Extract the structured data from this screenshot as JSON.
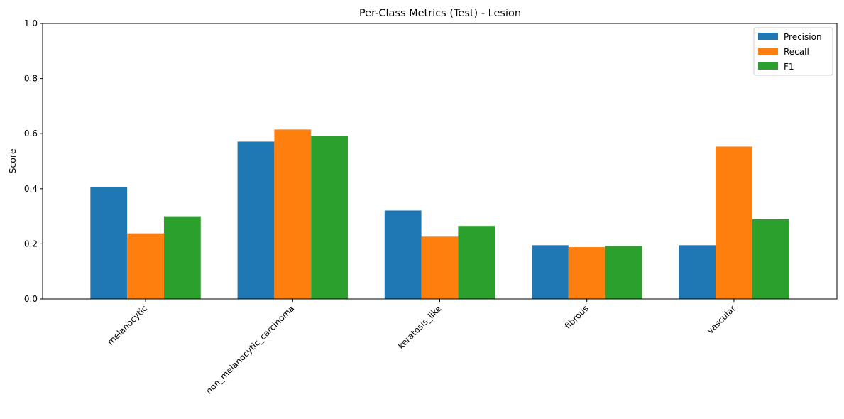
{
  "chart_data": {
    "type": "bar",
    "title": "Per-Class Metrics (Test) - Lesion",
    "xlabel": "",
    "ylabel": "Score",
    "ylim": [
      0,
      1.0
    ],
    "yticks": [
      "0.0",
      "0.2",
      "0.4",
      "0.6",
      "0.8",
      "1.0"
    ],
    "categories": [
      "melanocytic",
      "non_melanocytic_carcinoma",
      "keratosis_like",
      "fibrous",
      "vascular"
    ],
    "series": [
      {
        "name": "Precision",
        "color": "#1f77b4",
        "values": [
          0.405,
          0.571,
          0.321,
          0.195,
          0.195
        ]
      },
      {
        "name": "Recall",
        "color": "#ff7f0e",
        "values": [
          0.238,
          0.615,
          0.226,
          0.188,
          0.553
        ]
      },
      {
        "name": "F1",
        "color": "#2ca02c",
        "values": [
          0.3,
          0.592,
          0.265,
          0.192,
          0.289
        ]
      }
    ],
    "legend_position": "top-right",
    "grid": false
  }
}
